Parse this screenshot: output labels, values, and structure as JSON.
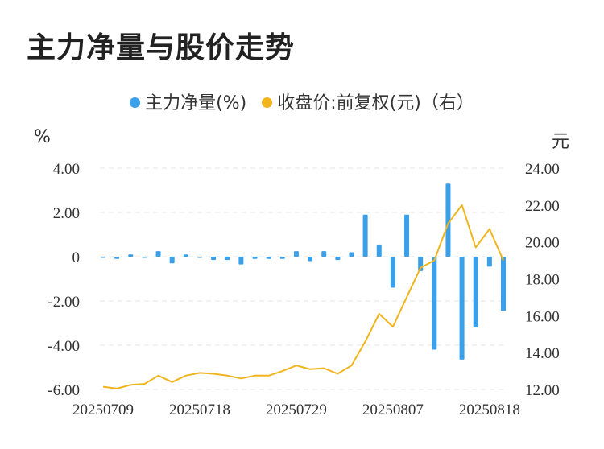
{
  "title": "主力净量与股价走势",
  "legend": {
    "items": [
      {
        "label": "主力净量(%)",
        "color": "#3aa0ea"
      },
      {
        "label": "收盘价:前复权(元)（右）",
        "color": "#f0b51c"
      }
    ]
  },
  "units": {
    "left": "%",
    "right": "元"
  },
  "chart_data": {
    "type": "bar+line",
    "title": "主力净量与股价走势",
    "x_tick_labels": [
      "20250709",
      "20250718",
      "20250729",
      "20250807",
      "20250818"
    ],
    "x_tick_indices": [
      0,
      7,
      14,
      21,
      28
    ],
    "dates": [
      "20250709",
      "20250710",
      "20250711",
      "20250714",
      "20250715",
      "20250716",
      "20250717",
      "20250718",
      "20250721",
      "20250722",
      "20250723",
      "20250724",
      "20250725",
      "20250728",
      "20250729",
      "20250730",
      "20250731",
      "20250801",
      "20250804",
      "20250805",
      "20250806",
      "20250807",
      "20250808",
      "20250811",
      "20250812",
      "20250813",
      "20250814",
      "20250815",
      "20250818",
      "20250819"
    ],
    "series": [
      {
        "name": "主力净量(%)",
        "axis": "left",
        "type": "bar",
        "color": "#3aa0ea",
        "values": [
          -0.05,
          -0.1,
          0.1,
          -0.05,
          0.25,
          -0.3,
          0.1,
          -0.05,
          -0.15,
          -0.15,
          -0.35,
          -0.1,
          -0.1,
          -0.1,
          0.25,
          -0.2,
          0.25,
          -0.15,
          0.2,
          1.9,
          0.55,
          -1.4,
          1.9,
          -0.65,
          -4.2,
          3.3,
          -4.65,
          -3.2,
          -0.45,
          -2.45
        ]
      },
      {
        "name": "收盘价:前复权(元)（右）",
        "axis": "right",
        "type": "line",
        "color": "#f0b51c",
        "values": [
          12.15,
          12.05,
          12.25,
          12.3,
          12.75,
          12.4,
          12.75,
          12.9,
          12.85,
          12.75,
          12.6,
          12.75,
          12.75,
          13.0,
          13.3,
          13.1,
          13.15,
          12.85,
          13.3,
          14.6,
          16.1,
          15.4,
          17.0,
          18.6,
          19.0,
          21.0,
          22.0,
          19.7,
          20.7,
          19.0
        ]
      }
    ],
    "y_left": {
      "min": -6,
      "max": 4,
      "ticks": [
        "4.00",
        "2.00",
        "0",
        "-2.00",
        "-4.00",
        "-6.00"
      ]
    },
    "y_right": {
      "min": 12,
      "max": 24,
      "ticks": [
        "24.00",
        "22.00",
        "20.00",
        "18.00",
        "16.00",
        "14.00",
        "12.00"
      ]
    },
    "grid": "horizontal dashed",
    "legend_position": "top-center"
  }
}
